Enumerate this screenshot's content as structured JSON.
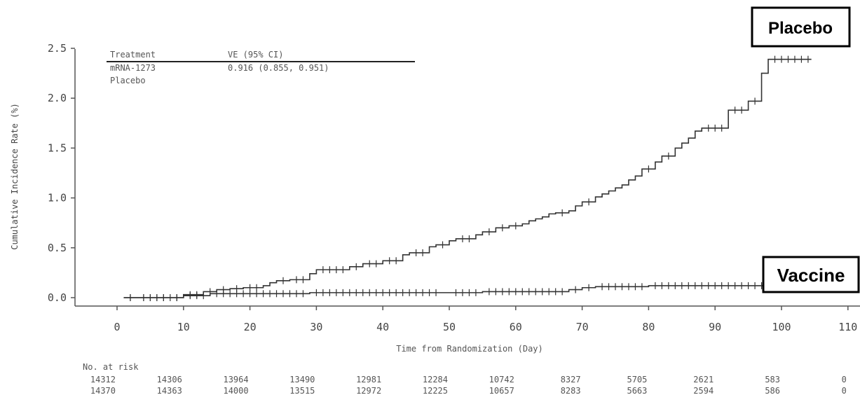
{
  "chart_data": {
    "type": "line",
    "xlabel": "Time from Randomization (Day)",
    "ylabel": "Cumulative Incidence Rate (%)",
    "xlim": [
      0,
      110
    ],
    "ylim": [
      0,
      2.5
    ],
    "x_ticks": [
      "0",
      "10",
      "20",
      "30",
      "40",
      "50",
      "60",
      "70",
      "80",
      "90",
      "100",
      "110"
    ],
    "y_ticks": [
      "0.0",
      "0.5",
      "1.0",
      "1.5",
      "2.0",
      "2.5"
    ],
    "legend_table": {
      "headers": [
        "Treatment",
        "VE (95% CI)"
      ],
      "rows": [
        {
          "treatment": "mRNA-1273",
          "ve": "0.916 (0.855, 0.951)"
        },
        {
          "treatment": "Placebo",
          "ve": ""
        }
      ]
    },
    "series": [
      {
        "name": "Placebo",
        "color": "#333333",
        "steps": [
          [
            1,
            0.0
          ],
          [
            8,
            0.0
          ],
          [
            10,
            0.03
          ],
          [
            13,
            0.06
          ],
          [
            15,
            0.08
          ],
          [
            17,
            0.09
          ],
          [
            19,
            0.1
          ],
          [
            22,
            0.12
          ],
          [
            23,
            0.15
          ],
          [
            24,
            0.17
          ],
          [
            26,
            0.18
          ],
          [
            29,
            0.24
          ],
          [
            30,
            0.28
          ],
          [
            35,
            0.31
          ],
          [
            37,
            0.34
          ],
          [
            40,
            0.37
          ],
          [
            43,
            0.43
          ],
          [
            44,
            0.45
          ],
          [
            47,
            0.51
          ],
          [
            48,
            0.53
          ],
          [
            50,
            0.57
          ],
          [
            51,
            0.59
          ],
          [
            54,
            0.63
          ],
          [
            55,
            0.66
          ],
          [
            57,
            0.7
          ],
          [
            59,
            0.72
          ],
          [
            61,
            0.74
          ],
          [
            62,
            0.77
          ],
          [
            63,
            0.79
          ],
          [
            64,
            0.81
          ],
          [
            65,
            0.84
          ],
          [
            66,
            0.85
          ],
          [
            68,
            0.87
          ],
          [
            69,
            0.92
          ],
          [
            70,
            0.96
          ],
          [
            72,
            1.01
          ],
          [
            73,
            1.04
          ],
          [
            74,
            1.07
          ],
          [
            75,
            1.1
          ],
          [
            76,
            1.13
          ],
          [
            77,
            1.18
          ],
          [
            78,
            1.22
          ],
          [
            79,
            1.29
          ],
          [
            81,
            1.36
          ],
          [
            82,
            1.42
          ],
          [
            84,
            1.5
          ],
          [
            85,
            1.55
          ],
          [
            86,
            1.6
          ],
          [
            87,
            1.67
          ],
          [
            88,
            1.7
          ],
          [
            92,
            1.88
          ],
          [
            95,
            1.97
          ],
          [
            97,
            2.25
          ],
          [
            98,
            2.39
          ],
          [
            104.5,
            2.39
          ]
        ],
        "censor_x": [
          2,
          4,
          5,
          6,
          7,
          9,
          11,
          12,
          14,
          16,
          18,
          20,
          21,
          25,
          27,
          28,
          31,
          32,
          33,
          34,
          36,
          38,
          39,
          41,
          42,
          45,
          46,
          49,
          52,
          53,
          56,
          58,
          60,
          67,
          71,
          80,
          83,
          89,
          90,
          91,
          93,
          94,
          96,
          99,
          100,
          101,
          102,
          103,
          104
        ]
      },
      {
        "name": "mRNA-1273",
        "color": "#333333",
        "steps": [
          [
            1,
            0.0
          ],
          [
            10,
            0.02
          ],
          [
            14,
            0.04
          ],
          [
            29,
            0.05
          ],
          [
            50,
            0.05
          ],
          [
            55,
            0.06
          ],
          [
            68,
            0.08
          ],
          [
            70,
            0.1
          ],
          [
            72,
            0.11
          ],
          [
            80,
            0.12
          ],
          [
            104.5,
            0.12
          ]
        ],
        "censor_x": [
          2,
          4,
          5,
          6,
          7,
          8,
          9,
          11,
          12,
          13,
          15,
          16,
          17,
          18,
          19,
          20,
          21,
          22,
          23,
          24,
          25,
          26,
          27,
          28,
          30,
          31,
          32,
          33,
          34,
          35,
          36,
          37,
          38,
          39,
          40,
          41,
          42,
          43,
          44,
          45,
          46,
          47,
          48,
          51,
          52,
          53,
          54,
          56,
          57,
          58,
          59,
          60,
          61,
          62,
          63,
          64,
          65,
          66,
          67,
          69,
          71,
          73,
          74,
          75,
          76,
          77,
          78,
          79,
          81,
          82,
          83,
          84,
          85,
          86,
          87,
          88,
          89,
          90,
          91,
          92,
          93,
          94,
          95,
          96,
          97,
          98,
          99,
          100,
          101,
          102,
          103,
          104
        ]
      }
    ],
    "at_risk": {
      "label": "No. at risk",
      "x": [
        0,
        10,
        20,
        30,
        40,
        50,
        60,
        70,
        80,
        90,
        100,
        110
      ],
      "rows": [
        [
          "14312",
          "14306",
          "13964",
          "13490",
          "12981",
          "12284",
          "10742",
          "8327",
          "5705",
          "2621",
          "583",
          "0"
        ],
        [
          "14370",
          "14363",
          "14000",
          "13515",
          "12972",
          "12225",
          "10657",
          "8283",
          "5663",
          "2594",
          "586",
          "0"
        ]
      ]
    },
    "annotations": [
      {
        "text": "Placebo",
        "near_series": "Placebo"
      },
      {
        "text": "Vaccine",
        "near_series": "mRNA-1273"
      }
    ]
  }
}
